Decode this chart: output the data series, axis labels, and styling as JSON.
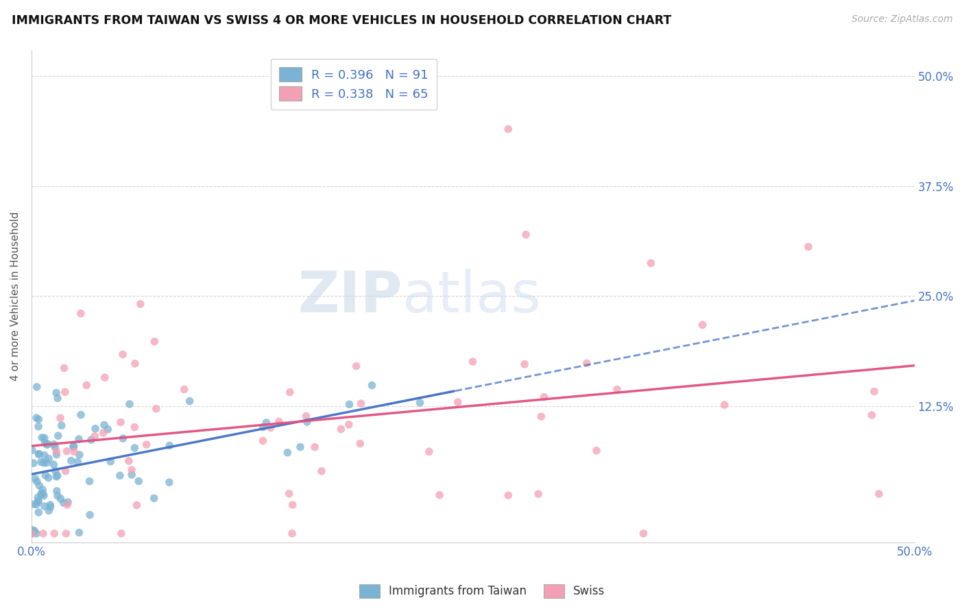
{
  "title": "IMMIGRANTS FROM TAIWAN VS SWISS 4 OR MORE VEHICLES IN HOUSEHOLD CORRELATION CHART",
  "source": "Source: ZipAtlas.com",
  "ylabel": "4 or more Vehicles in Household",
  "color_taiwan": "#7ab3d4",
  "color_swiss": "#f4a0b4",
  "color_taiwan_line": "#4472c4",
  "color_swiss_line": "#e05080",
  "legend_r_taiwan": "R = 0.396",
  "legend_n_taiwan": "N = 91",
  "legend_r_swiss": "R = 0.338",
  "legend_n_swiss": "N = 65",
  "R_taiwan": 0.396,
  "N_taiwan": 91,
  "R_swiss": 0.338,
  "N_swiss": 65,
  "xlim": [
    0.0,
    0.5
  ],
  "ylim": [
    -0.03,
    0.53
  ],
  "yticks": [
    0.125,
    0.25,
    0.375,
    0.5
  ],
  "ytick_labels": [
    "12.5%",
    "25.0%",
    "37.5%",
    "50.0%"
  ],
  "watermark_zip": "ZIP",
  "watermark_atlas": "atlas"
}
